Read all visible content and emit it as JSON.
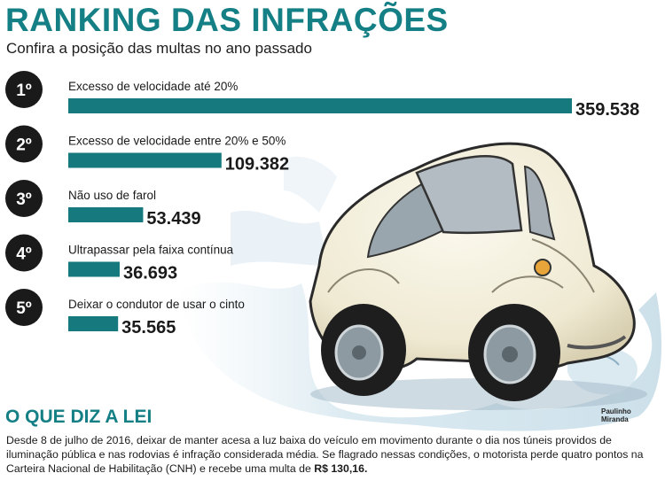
{
  "header": {
    "title": "RANKING DAS INFRAÇÕES",
    "subtitle": "Confira a posição das multas no ano passado"
  },
  "chart_data": {
    "type": "bar",
    "orientation": "horizontal",
    "title": "RANKING DAS INFRAÇÕES",
    "subtitle": "Confira a posição das multas no ano passado",
    "ranks": [
      "1º",
      "2º",
      "3º",
      "4º",
      "5º"
    ],
    "categories": [
      "Excesso de velocidade até 20%",
      "Excesso de velocidade entre 20% e 50%",
      "Não uso de farol",
      "Ultrapassar pela faixa contínua",
      "Deixar o condutor de usar o cinto"
    ],
    "values": [
      359538,
      109382,
      53439,
      36693,
      35565
    ],
    "value_labels": [
      "359.538",
      "109.382",
      "53.439",
      "36.693",
      "35.565"
    ],
    "xlim": [
      0,
      359538
    ],
    "grid": false,
    "legend": "none",
    "bar_color": "#15797d",
    "rank_circle_color": "#1a1a1a"
  },
  "law": {
    "title": "O QUE DIZ A LEI",
    "text": "Desde 8 de julho de 2016, deixar de manter acesa a luz baixa do veículo em movimento durante o dia nos túneis providos de iluminação pública e nas rodovias é infração considerada média. Se flagrado nessas condições, o motorista perde quatro pontos na Carteira Nacional de Habilitação (CNH) e recebe uma multa de ",
    "fine": "R$ 130,16."
  },
  "credit": {
    "line1": "Paulinho",
    "line2": "Miranda"
  },
  "illustration": {
    "subject": "car-illustration",
    "colors": {
      "body": "#f4f0df",
      "tire": "#1e1e1e",
      "smoke": "#cfe2ec",
      "accent": "#147f84"
    }
  }
}
